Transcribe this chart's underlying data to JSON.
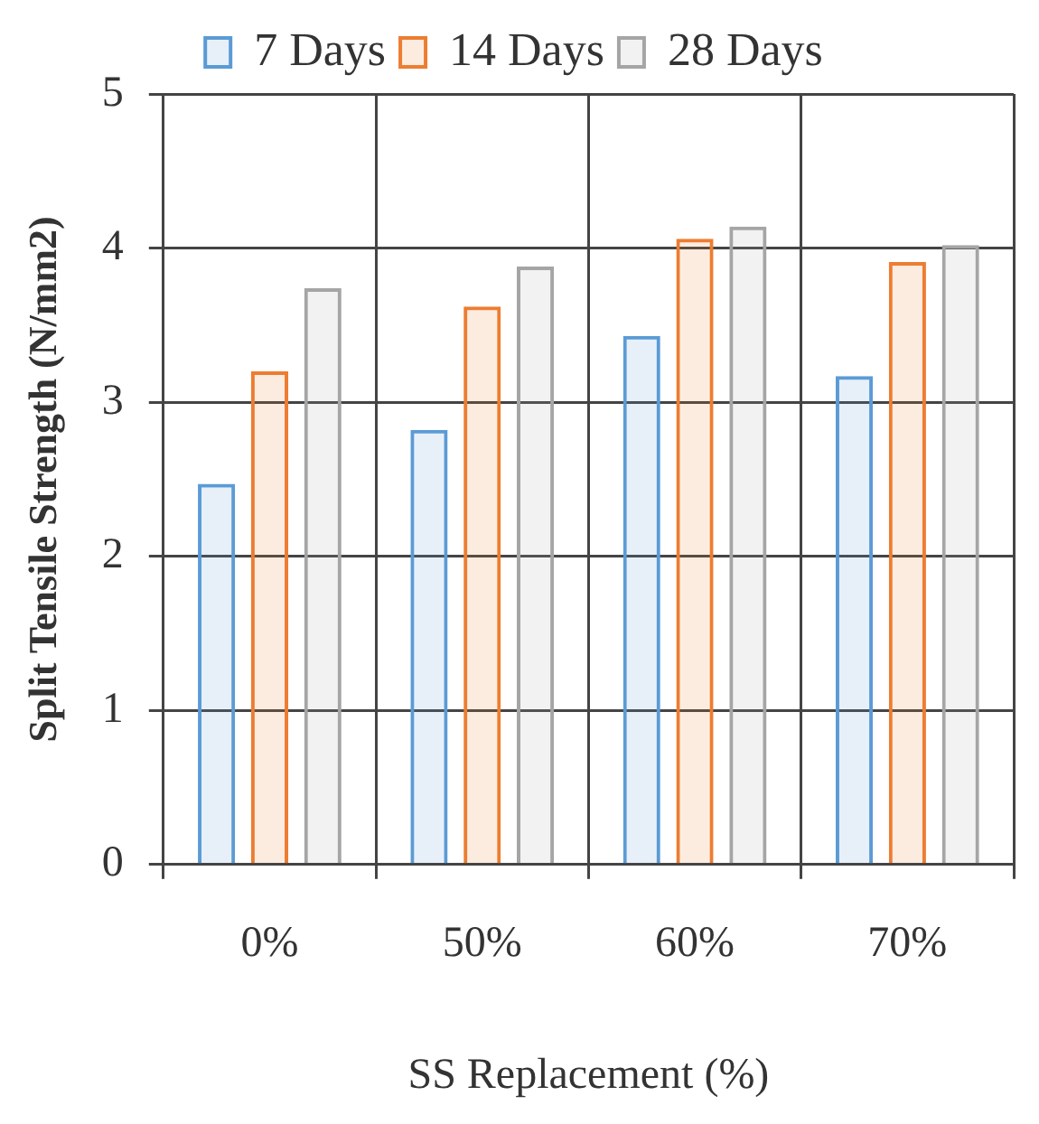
{
  "chart_data": {
    "type": "bar",
    "xlabel": "SS Replacement (%)",
    "ylabel": "Split Tensile Strength (N/mm2)",
    "categories": [
      "0%",
      "50%",
      "60%",
      "70%"
    ],
    "series": [
      {
        "name": "7 Days",
        "color": "#5b9bd5",
        "values": [
          2.47,
          2.82,
          3.43,
          3.17
        ]
      },
      {
        "name": "14 Days",
        "color": "#ed7d31",
        "values": [
          3.2,
          3.62,
          4.06,
          3.91
        ]
      },
      {
        "name": "28 Days",
        "color": "#a5a5a5",
        "values": [
          3.74,
          3.88,
          4.14,
          4.02
        ]
      }
    ],
    "ylim": [
      0,
      5
    ],
    "yticks": [
      0,
      1,
      2,
      3,
      4,
      5
    ],
    "grid": true,
    "legend": "top"
  }
}
